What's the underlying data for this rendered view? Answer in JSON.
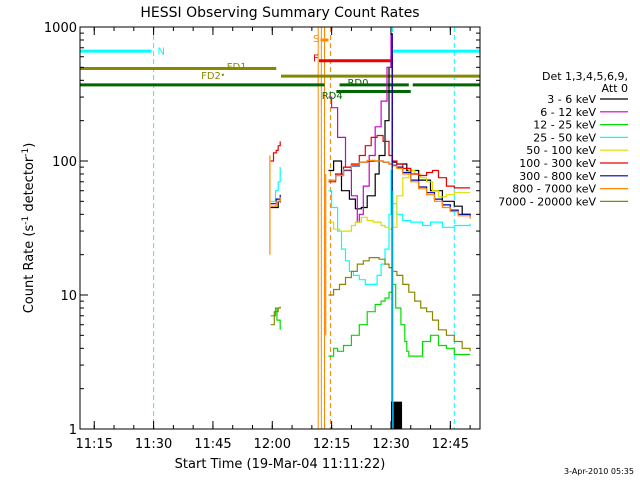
{
  "chart_data": {
    "type": "line",
    "title": "HESSI Observing Summary Count Rates",
    "xlabel": "Start Time (19-Mar-04 11:11:22)",
    "ylabel_main": "Count Rate (s",
    "ylabel_sup1": "-1",
    "ylabel_mid": " detector",
    "ylabel_sup2": "-1",
    "ylabel_end": ")",
    "y_scale": "log",
    "ylim": [
      1,
      1000
    ],
    "xlim": [
      671.4,
      772.5
    ],
    "x_ticks": [
      {
        "value": 675,
        "label": "11:15"
      },
      {
        "value": 690,
        "label": "11:30"
      },
      {
        "value": 705,
        "label": "11:45"
      },
      {
        "value": 720,
        "label": "12:00"
      },
      {
        "value": 735,
        "label": "12:15"
      },
      {
        "value": 750,
        "label": "12:30"
      },
      {
        "value": 765,
        "label": "12:45"
      }
    ],
    "y_ticks": [
      {
        "value": 1,
        "label": "1"
      },
      {
        "value": 10,
        "label": "10"
      },
      {
        "value": 100,
        "label": "100"
      },
      {
        "value": 1000,
        "label": "1000"
      }
    ],
    "legend_title": "Det 1,3,4,5,6,9,",
    "legend_subtitle": "Att 0",
    "legend_position": "right",
    "series": [
      {
        "name": "3 - 6 keV",
        "color": "#000000",
        "points": [
          [
            719.6,
            45
          ],
          [
            721.5,
            50
          ],
          [
            722.0,
            49
          ],
          [
            734.2,
            85
          ],
          [
            735.5,
            100
          ],
          [
            737.5,
            60
          ],
          [
            739.5,
            52
          ],
          [
            741.0,
            44
          ],
          [
            742.5,
            45
          ],
          [
            744.0,
            55
          ],
          [
            746.0,
            80
          ],
          [
            747.0,
            110
          ],
          [
            748.5,
            200
          ],
          [
            749.5,
            500
          ],
          [
            750.0,
            600
          ],
          [
            750.3,
            98
          ],
          [
            751.5,
            95
          ],
          [
            754.0,
            85
          ],
          [
            757.0,
            72
          ],
          [
            760.0,
            60
          ],
          [
            763.0,
            50
          ],
          [
            766.0,
            46
          ],
          [
            768.0,
            40
          ],
          [
            770.0,
            39
          ]
        ]
      },
      {
        "name": "6 - 12 keV",
        "color": "#cc00cc",
        "points": [
          [
            734.2,
            300
          ],
          [
            735.0,
            250
          ],
          [
            736.5,
            150
          ],
          [
            738.5,
            90
          ],
          [
            740.0,
            55
          ],
          [
            741.5,
            35
          ],
          [
            742.0,
            40
          ],
          [
            743.0,
            65
          ],
          [
            744.5,
            110
          ],
          [
            746.0,
            180
          ],
          [
            747.5,
            280
          ],
          [
            749.0,
            500
          ],
          [
            750.0,
            880
          ],
          [
            750.3,
            100
          ]
        ]
      },
      {
        "name": "12 - 25 keV",
        "color": "#00dd00",
        "points": [
          [
            719.6,
            7
          ],
          [
            720.8,
            8
          ],
          [
            721.2,
            6.5
          ],
          [
            722.0,
            5.5
          ],
          [
            734.2,
            3.5
          ],
          [
            735.5,
            4
          ],
          [
            736.5,
            3.8
          ],
          [
            738.0,
            4.2
          ],
          [
            740.0,
            5
          ],
          [
            742.0,
            6
          ],
          [
            744.0,
            7.5
          ],
          [
            746.0,
            8.5
          ],
          [
            747.5,
            9
          ],
          [
            748.5,
            9.5
          ],
          [
            749.5,
            10.5
          ],
          [
            750.3,
            12
          ],
          [
            751.2,
            8
          ],
          [
            752.5,
            6
          ],
          [
            753.5,
            4.5
          ],
          [
            754.0,
            3.8
          ],
          [
            754.5,
            3.5
          ],
          [
            756.0,
            3.5
          ],
          [
            758.0,
            4.5
          ],
          [
            760.0,
            5
          ],
          [
            762.0,
            4.2
          ],
          [
            764.0,
            4
          ],
          [
            766.0,
            3.6
          ],
          [
            769.0,
            3.6
          ],
          [
            770.0,
            3.6
          ]
        ]
      },
      {
        "name": "25 - 50 keV",
        "color": "#00ffff",
        "points": [
          [
            719.6,
            50
          ],
          [
            720.8,
            60
          ],
          [
            721.5,
            70
          ],
          [
            722.0,
            90
          ],
          [
            734.2,
            60
          ],
          [
            735.0,
            45
          ],
          [
            736.5,
            30
          ],
          [
            737.5,
            22
          ],
          [
            738.5,
            18
          ],
          [
            739.5,
            15
          ],
          [
            740.5,
            14
          ],
          [
            742.0,
            13
          ],
          [
            743.5,
            12
          ],
          [
            745.0,
            12
          ],
          [
            746.5,
            14
          ],
          [
            747.5,
            17
          ],
          [
            748.5,
            22
          ],
          [
            749.5,
            40
          ],
          [
            750.0,
            85
          ],
          [
            750.3,
            48
          ],
          [
            751.5,
            40
          ],
          [
            753.0,
            36
          ],
          [
            755.0,
            35
          ],
          [
            758.0,
            33
          ],
          [
            760.0,
            35
          ],
          [
            763.0,
            32
          ],
          [
            766.0,
            33
          ],
          [
            770.0,
            34
          ]
        ]
      },
      {
        "name": "50 - 100 keV",
        "color": "#dddd00",
        "points": [
          [
            734.2,
            35
          ],
          [
            735.5,
            31
          ],
          [
            737.0,
            30
          ],
          [
            738.5,
            30
          ],
          [
            740.0,
            33
          ],
          [
            741.0,
            35
          ],
          [
            742.5,
            38
          ],
          [
            744.0,
            36
          ],
          [
            745.5,
            35
          ],
          [
            746.5,
            35
          ],
          [
            747.5,
            33
          ],
          [
            748.5,
            32
          ],
          [
            749.5,
            31
          ],
          [
            750.3,
            32
          ],
          [
            751.5,
            55
          ],
          [
            753.0,
            75
          ],
          [
            754.5,
            85
          ],
          [
            756.0,
            80
          ],
          [
            757.5,
            75
          ],
          [
            759.0,
            70
          ],
          [
            760.5,
            60
          ],
          [
            762.0,
            54
          ],
          [
            764.0,
            56
          ],
          [
            766.0,
            58
          ],
          [
            768.0,
            58
          ],
          [
            770.0,
            58
          ]
        ]
      },
      {
        "name": "100 - 300 keV",
        "color": "#ee0000",
        "points": [
          [
            719.6,
            100
          ],
          [
            720.3,
            115
          ],
          [
            721.0,
            120
          ],
          [
            721.5,
            130
          ],
          [
            722.0,
            140
          ],
          [
            734.2,
            70
          ],
          [
            736.0,
            80
          ],
          [
            738.0,
            90
          ],
          [
            740.0,
            95
          ],
          [
            742.0,
            110
          ],
          [
            743.5,
            130
          ],
          [
            745.0,
            150
          ],
          [
            746.5,
            155
          ],
          [
            748.0,
            140
          ],
          [
            749.5,
            110
          ],
          [
            750.3,
            100
          ],
          [
            751.5,
            95
          ],
          [
            753.0,
            88
          ],
          [
            755.0,
            80
          ],
          [
            757.0,
            78
          ],
          [
            759.0,
            82
          ],
          [
            760.5,
            85
          ],
          [
            762.0,
            75
          ],
          [
            764.0,
            65
          ],
          [
            766.0,
            63
          ],
          [
            768.0,
            63
          ],
          [
            770.0,
            63
          ]
        ]
      },
      {
        "name": "300 - 800 keV",
        "color": "#0000aa",
        "points": [
          [
            719.6,
            48
          ],
          [
            721.0,
            52
          ],
          [
            722.0,
            56
          ],
          [
            734.2,
            72
          ],
          [
            736.0,
            78
          ],
          [
            738.0,
            85
          ],
          [
            740.0,
            92
          ],
          [
            742.0,
            98
          ],
          [
            744.0,
            100
          ],
          [
            746.0,
            100
          ],
          [
            748.0,
            98
          ],
          [
            749.5,
            95
          ],
          [
            750.3,
            93
          ],
          [
            751.5,
            90
          ],
          [
            753.0,
            82
          ],
          [
            755.0,
            72
          ],
          [
            757.0,
            64
          ],
          [
            759.0,
            58
          ],
          [
            761.0,
            52
          ],
          [
            763.0,
            47
          ],
          [
            765.0,
            43
          ],
          [
            767.0,
            40
          ],
          [
            770.0,
            38
          ]
        ]
      },
      {
        "name": "800 - 7000 keV",
        "color": "#ff8800",
        "points": [
          [
            719.6,
            46
          ],
          [
            721.0,
            50
          ],
          [
            722.0,
            54
          ],
          [
            734.2,
            72
          ],
          [
            736.0,
            78
          ],
          [
            738.0,
            86
          ],
          [
            740.0,
            93
          ],
          [
            742.0,
            98
          ],
          [
            744.0,
            101
          ],
          [
            746.0,
            100
          ],
          [
            748.0,
            98
          ],
          [
            749.5,
            95
          ],
          [
            750.3,
            92
          ],
          [
            751.5,
            88
          ],
          [
            753.0,
            80
          ],
          [
            755.0,
            70
          ],
          [
            757.0,
            62
          ],
          [
            759.0,
            56
          ],
          [
            761.0,
            50
          ],
          [
            763.0,
            45
          ],
          [
            765.0,
            42
          ],
          [
            767.0,
            39
          ],
          [
            770.0,
            37
          ]
        ]
      },
      {
        "name": "7000 - 20000 keV",
        "color": "#888800",
        "points": [
          [
            719.6,
            6
          ],
          [
            720.5,
            7.5
          ],
          [
            721.5,
            8
          ],
          [
            722.0,
            8.2
          ],
          [
            734.2,
            10
          ],
          [
            735.5,
            11
          ],
          [
            737.0,
            12
          ],
          [
            738.5,
            13.5
          ],
          [
            740.0,
            15
          ],
          [
            741.5,
            17
          ],
          [
            743.0,
            18
          ],
          [
            744.5,
            19
          ],
          [
            746.0,
            19
          ],
          [
            747.0,
            18.5
          ],
          [
            748.5,
            17
          ],
          [
            749.5,
            16
          ],
          [
            750.3,
            15
          ],
          [
            751.5,
            14
          ],
          [
            753.0,
            12
          ],
          [
            754.5,
            10.5
          ],
          [
            756.0,
            9
          ],
          [
            757.5,
            8
          ],
          [
            759.0,
            7.5
          ],
          [
            760.5,
            6.5
          ],
          [
            762.0,
            5.5
          ],
          [
            764.0,
            5
          ],
          [
            766.0,
            4.5
          ],
          [
            768.0,
            4
          ],
          [
            770.0,
            3.8
          ]
        ]
      }
    ],
    "spikes": [
      {
        "color": "#ff8800",
        "x": 719.4,
        "from": 20,
        "to": 110
      },
      {
        "color": "#0000aa",
        "x": 750.3,
        "from": 1,
        "to": 900
      },
      {
        "color": "#00ffff",
        "x": 750.5,
        "from": 1,
        "to": 60
      },
      {
        "color": "#ff8800",
        "x": 733.5,
        "from": 5,
        "to": 80
      }
    ],
    "noise_blocks": [
      {
        "color": "#000000",
        "from": 750.0,
        "to": 752.8,
        "ymin": 1,
        "ymax": 1.6
      }
    ],
    "vlines": [
      {
        "x": 690,
        "color": "#00ffff",
        "dashed": true
      },
      {
        "x": 750.4,
        "color": "#00ffff",
        "dashed": true
      },
      {
        "x": 766,
        "color": "#00ffff",
        "dashed": true
      },
      {
        "x": 731.6,
        "color": "#ff8800",
        "dashed": false
      },
      {
        "x": 732.4,
        "color": "#ff8800",
        "dashed": false
      },
      {
        "x": 733.2,
        "color": "#ff8800",
        "dashed": false
      },
      {
        "x": 734.7,
        "color": "#ff8800",
        "dashed": true
      }
    ],
    "flag_bars": [
      {
        "label": "N",
        "color": "#00ffff",
        "y": 660,
        "segments": [
          [
            671.4,
            689.5
          ],
          [
            750.6,
            772.5
          ]
        ],
        "label_x": 691,
        "label_y": 670
      },
      {
        "label": "S",
        "color": "#ff8800",
        "y": 800,
        "segments": [
          [
            732.2,
            734.2
          ]
        ],
        "label_x": 730.3,
        "label_y": 830
      },
      {
        "label": "F",
        "color": "#ee0000",
        "y": 560,
        "segments": [
          [
            731.8,
            750.3
          ]
        ],
        "label_x": 730.3,
        "label_y": 590
      },
      {
        "label": "FD1",
        "color": "#888800",
        "y": 490,
        "segments": [
          [
            671.4,
            721.0
          ]
        ],
        "label_x": 708.5,
        "label_y": 510
      },
      {
        "label": "FD2",
        "color": "#888800",
        "y": 430,
        "segments": [
          [
            722.2,
            772.5
          ]
        ],
        "label_x": 702,
        "label_y": 440
      },
      {
        "label": "RD0",
        "color": "#006600",
        "y": 370,
        "segments": [
          [
            671.4,
            733.2
          ],
          [
            737.0,
            754.5
          ],
          [
            755.5,
            772.5
          ]
        ],
        "label_x": 739,
        "label_y": 390
      },
      {
        "label": "RD4",
        "color": "#006600",
        "y": 330,
        "segments": [
          [
            736.2,
            755.0
          ]
        ],
        "label_x": 732.5,
        "label_y": 310
      }
    ],
    "flag_markers": [
      {
        "color": "#888800",
        "x": 707.5,
        "y": 440
      }
    ]
  },
  "footer": {
    "timestamp": "3-Apr-2010 05:35"
  }
}
